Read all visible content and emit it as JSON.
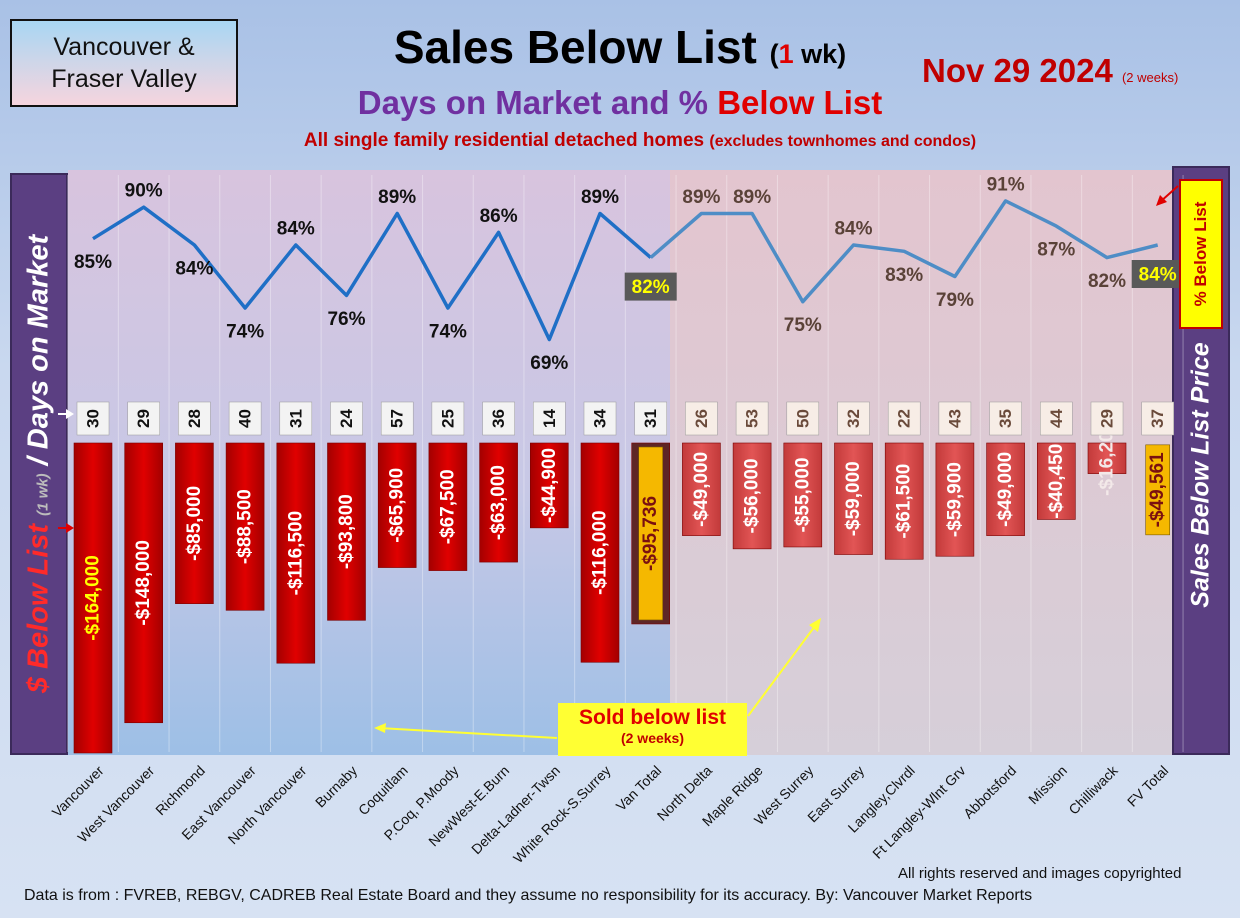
{
  "header": {
    "region_line1": "Vancouver &",
    "region_line2": "Fraser Valley",
    "title_main": "Sales Below List",
    "title_period_open": "(",
    "title_period_num": "1",
    "title_period_close": " wk)",
    "subtitle_part1": "Days on Market and % ",
    "subtitle_part2": "Below List",
    "tagline_main": "All single family residential detached homes ",
    "tagline_small": "(excludes townhomes and condos)",
    "date": "Nov 29  2024 ",
    "date_note": "(2 weeks)"
  },
  "axes": {
    "left_label_part1": "$ Below List ",
    "left_label_part2": "(1 wk)",
    "left_label_part3": " / Days on Market",
    "right_label": "Sales Below List Price",
    "pct_legend": "% Below List"
  },
  "annotation": {
    "sold_line1": "Sold below list",
    "sold_line2": "(2 weeks)"
  },
  "footer": {
    "rights": "All rights reserved and  images copyrighted",
    "source": "Data is from : FVREB, REBGV, CADREB Real Estate Board and they assume no responsibility for its accuracy. By: Vancouver Market Reports"
  },
  "colors": {
    "bar_red": "#c80000",
    "bar_total": "#5e2626",
    "line_blue": "#1f6fc6",
    "line_steel": "#4e8dc6",
    "highlight_yellow": "#ffff00",
    "total_label_bg": "#f5b800"
  },
  "chart_data": {
    "type": "bar",
    "categories": [
      "Vancouver",
      "West Vancouver",
      "Richmond",
      "East Vancouver",
      "North Vancouver",
      "Burnaby",
      "Coquitlam",
      "P.Coq, P.Moody",
      "NewWest-E.Burn",
      "Delta-Ladner-Twsn",
      "White Rock-S.Surrey",
      "Van Total",
      "North Delta",
      "Maple Ridge",
      "West Surrey",
      "East Surrey",
      "Langley,Clvrdl",
      "Ft Langley-Wlnt Grv",
      "Abbotsford",
      "Mission",
      "Chilliwack",
      "FV Total"
    ],
    "dollar_labels": [
      "-$164,000",
      "-$148,000",
      "-$85,000",
      "-$88,500",
      "-$116,500",
      "-$93,800",
      "-$65,900",
      "-$67,500",
      "-$63,000",
      "-$44,900",
      "-$116,000",
      "-$95,736",
      "-$49,000",
      "-$56,000",
      "-$55,000",
      "-$59,000",
      "-$61,500",
      "-$59,900",
      "-$49,000",
      "-$40,450",
      "-$16,201",
      "-$49,561"
    ],
    "series": [
      {
        "values": [
          -164000,
          -148000,
          -85000,
          -88500,
          -116500,
          -93800,
          -65900,
          -67500,
          -63000,
          -44900,
          -116000,
          -95736,
          -49000,
          -56000,
          -55000,
          -59000,
          -61500,
          -59900,
          -49000,
          -40450,
          -16201,
          -49561
        ]
      },
      {
        "values": [
          30,
          29,
          28,
          40,
          31,
          24,
          57,
          25,
          36,
          14,
          34,
          31,
          26,
          53,
          50,
          32,
          22,
          43,
          35,
          44,
          29,
          37
        ]
      },
      {
        "values": [
          85,
          90,
          84,
          74,
          84,
          76,
          89,
          74,
          86,
          69,
          89,
          82,
          89,
          89,
          75,
          84,
          83,
          79,
          91,
          87,
          82,
          84
        ]
      }
    ],
    "pct_labels": [
      "85%",
      "90%",
      "84%",
      "74%",
      "84%",
      "76%",
      "89%",
      "74%",
      "86%",
      "69%",
      "89%",
      "82%",
      "89%",
      "89%",
      "75%",
      "84%",
      "83%",
      "79%",
      "91%",
      "87%",
      "82%",
      "84%"
    ],
    "dom_labels": [
      "30",
      "29",
      "28",
      "40",
      "31",
      "24",
      "57",
      "25",
      "36",
      "14",
      "34",
      "31",
      "26",
      "53",
      "50",
      "32",
      "22",
      "43",
      "35",
      "44",
      "29",
      "37"
    ],
    "regions": [
      "Vancouver",
      "Fraser Valley"
    ],
    "grid": true,
    "legend": "none"
  }
}
